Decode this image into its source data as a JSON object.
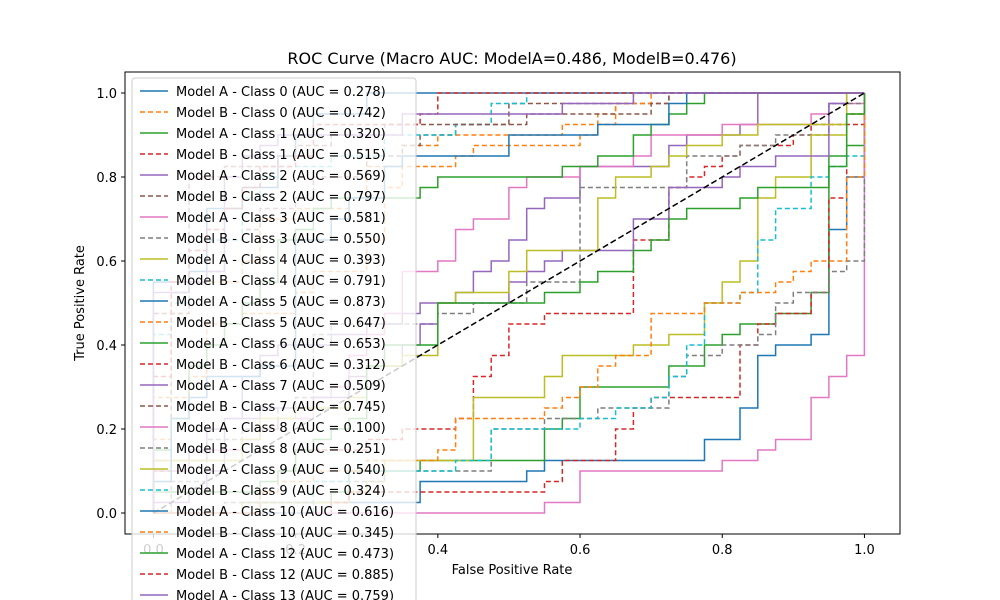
{
  "chart_data": {
    "type": "line",
    "title": "ROC Curve (Macro AUC: ModelA=0.486, ModelB=0.476)",
    "xlabel": "False Positive Rate",
    "ylabel": "True Positive Rate",
    "xlim": [
      -0.04,
      1.05
    ],
    "ylim": [
      -0.05,
      1.05
    ],
    "xticks": [
      "0.0",
      "0.2",
      "0.4",
      "0.6",
      "0.8",
      "1.0"
    ],
    "yticks": [
      "0.0",
      "0.2",
      "0.4",
      "0.6",
      "0.8",
      "1.0"
    ],
    "grid": false,
    "legend_position": "upper-left",
    "diagonal": {
      "x": [
        0,
        1
      ],
      "y": [
        0,
        1
      ],
      "color": "#000000",
      "style": "dashed"
    },
    "palette": [
      "#1f77b4",
      "#ff7f0e",
      "#2ca02c",
      "#d62728",
      "#9467bd",
      "#8c564b",
      "#e377c2",
      "#7f7f7f",
      "#bcbd22",
      "#17becf"
    ],
    "series": [
      {
        "name": "Model A - Class 0 (AUC = 0.278)",
        "model": "A",
        "auc": 0.278,
        "style": "solid"
      },
      {
        "name": "Model B - Class 0 (AUC = 0.742)",
        "model": "B",
        "auc": 0.742,
        "style": "dashed"
      },
      {
        "name": "Model A - Class 1 (AUC = 0.320)",
        "model": "A",
        "auc": 0.32,
        "style": "solid"
      },
      {
        "name": "Model B - Class 1 (AUC = 0.515)",
        "model": "B",
        "auc": 0.515,
        "style": "dashed"
      },
      {
        "name": "Model A - Class 2 (AUC = 0.569)",
        "model": "A",
        "auc": 0.569,
        "style": "solid"
      },
      {
        "name": "Model B - Class 2 (AUC = 0.797)",
        "model": "B",
        "auc": 0.797,
        "style": "dashed"
      },
      {
        "name": "Model A - Class 3 (AUC = 0.581)",
        "model": "A",
        "auc": 0.581,
        "style": "solid"
      },
      {
        "name": "Model B - Class 3 (AUC = 0.550)",
        "model": "B",
        "auc": 0.55,
        "style": "dashed"
      },
      {
        "name": "Model A - Class 4 (AUC = 0.393)",
        "model": "A",
        "auc": 0.393,
        "style": "solid"
      },
      {
        "name": "Model B - Class 4 (AUC = 0.791)",
        "model": "B",
        "auc": 0.791,
        "style": "dashed"
      },
      {
        "name": "Model A - Class 5 (AUC = 0.873)",
        "model": "A",
        "auc": 0.873,
        "style": "solid"
      },
      {
        "name": "Model B - Class 5 (AUC = 0.647)",
        "model": "B",
        "auc": 0.647,
        "style": "dashed"
      },
      {
        "name": "Model A - Class 6 (AUC = 0.653)",
        "model": "A",
        "auc": 0.653,
        "style": "solid"
      },
      {
        "name": "Model B - Class 6 (AUC = 0.312)",
        "model": "B",
        "auc": 0.312,
        "style": "dashed"
      },
      {
        "name": "Model A - Class 7 (AUC = 0.509)",
        "model": "A",
        "auc": 0.509,
        "style": "solid"
      },
      {
        "name": "Model B - Class 7 (AUC = 0.745)",
        "model": "B",
        "auc": 0.745,
        "style": "dashed"
      },
      {
        "name": "Model A - Class 8 (AUC = 0.100)",
        "model": "A",
        "auc": 0.1,
        "style": "solid"
      },
      {
        "name": "Model B - Class 8 (AUC = 0.251)",
        "model": "B",
        "auc": 0.251,
        "style": "dashed"
      },
      {
        "name": "Model A - Class 9 (AUC = 0.540)",
        "model": "A",
        "auc": 0.54,
        "style": "solid"
      },
      {
        "name": "Model B - Class 9 (AUC = 0.324)",
        "model": "B",
        "auc": 0.324,
        "style": "dashed"
      },
      {
        "name": "Model A - Class 10 (AUC = 0.616)",
        "model": "A",
        "auc": 0.616,
        "style": "solid"
      },
      {
        "name": "Model B - Class 10 (AUC = 0.345)",
        "model": "B",
        "auc": 0.345,
        "style": "dashed"
      },
      {
        "name": "Model A - Class 12 (AUC = 0.473)",
        "model": "A",
        "auc": 0.473,
        "style": "solid"
      },
      {
        "name": "Model B - Class 12 (AUC = 0.885)",
        "model": "B",
        "auc": 0.885,
        "style": "dashed"
      },
      {
        "name": "Model A - Class 13 (AUC = 0.759)",
        "model": "A",
        "auc": 0.759,
        "style": "solid"
      }
    ]
  }
}
